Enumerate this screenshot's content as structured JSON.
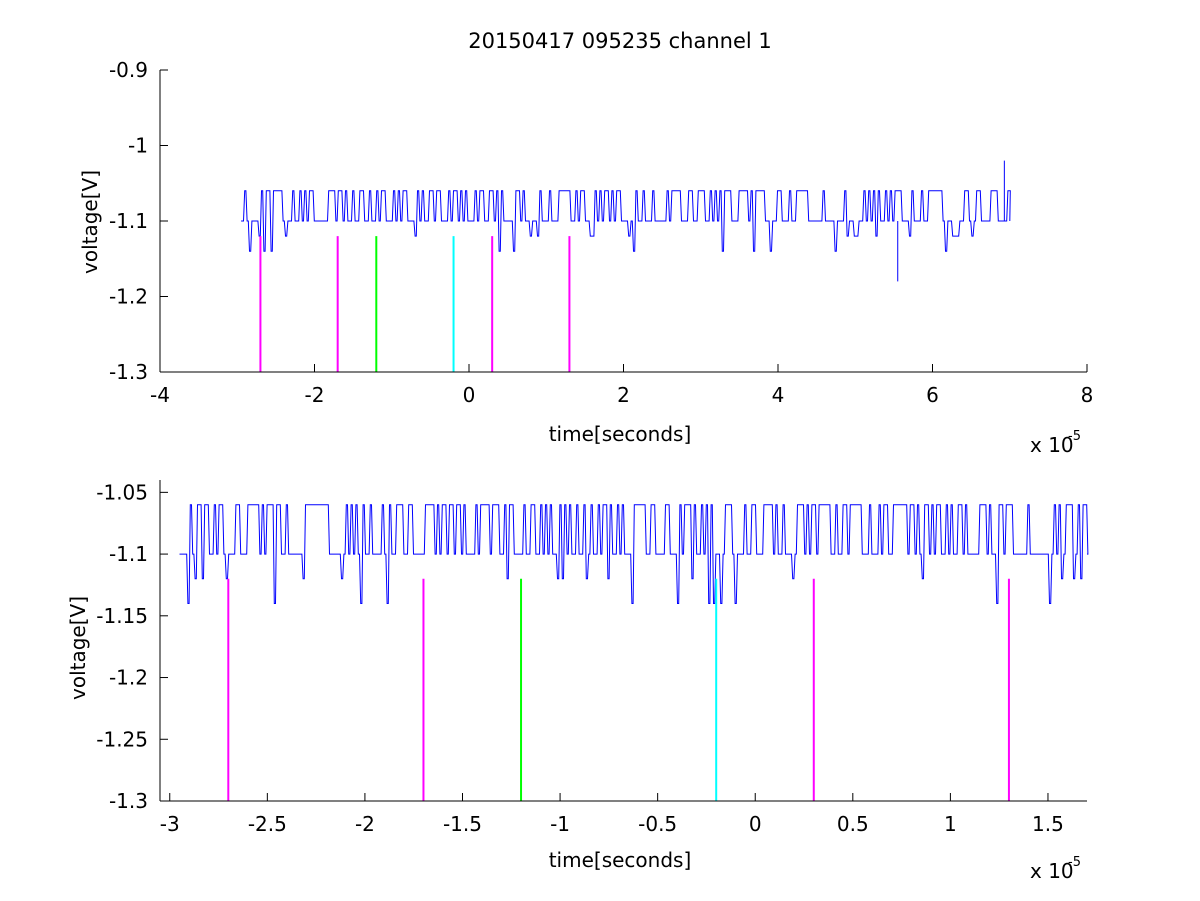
{
  "chart_data": [
    {
      "type": "line",
      "title": "20150417 095235 channel 1",
      "xlabel": "time[seconds]",
      "ylabel": "voltage[V]",
      "x_multiplier": "x 10",
      "x_multiplier_exponent": "-5",
      "xlim": [
        -4,
        8
      ],
      "ylim": [
        -1.3,
        -0.9
      ],
      "xticks": [
        -4,
        -2,
        0,
        2,
        4,
        6,
        8
      ],
      "xtick_labels": [
        "-4",
        "-2",
        "0",
        "2",
        "4",
        "6",
        "8"
      ],
      "yticks": [
        -1.3,
        -1.2,
        -1.1,
        -1.0,
        -0.9
      ],
      "ytick_labels": [
        "-1.3",
        "-1.2",
        "-1.1",
        "-1",
        "-0.9"
      ],
      "grid": false,
      "signal": {
        "color": "#0000ff",
        "x_range": [
          -2.95,
          7.0
        ],
        "baseline": -1.1,
        "levels": [
          -1.06,
          -1.1,
          -1.12,
          -1.14
        ],
        "spikes": [
          {
            "x": 5.55,
            "y": -1.18
          },
          {
            "x": 6.93,
            "y": -1.02
          }
        ]
      },
      "markers": [
        {
          "x": -2.7,
          "y_top": -1.12,
          "y_bottom": -1.3,
          "color": "#ff00ff"
        },
        {
          "x": -1.7,
          "y_top": -1.12,
          "y_bottom": -1.3,
          "color": "#ff00ff"
        },
        {
          "x": -1.2,
          "y_top": -1.12,
          "y_bottom": -1.3,
          "color": "#00ff00"
        },
        {
          "x": -0.2,
          "y_top": -1.12,
          "y_bottom": -1.3,
          "color": "#00ffff"
        },
        {
          "x": 0.3,
          "y_top": -1.12,
          "y_bottom": -1.3,
          "color": "#ff00ff"
        },
        {
          "x": 1.3,
          "y_top": -1.12,
          "y_bottom": -1.3,
          "color": "#ff00ff"
        }
      ]
    },
    {
      "type": "line",
      "title": "",
      "xlabel": "time[seconds]",
      "ylabel": "voltage[V]",
      "x_multiplier": "x 10",
      "x_multiplier_exponent": "-5",
      "xlim": [
        -3.05,
        1.7
      ],
      "ylim": [
        -1.3,
        -1.04
      ],
      "xticks": [
        -3,
        -2.5,
        -2,
        -1.5,
        -1,
        -0.5,
        0,
        0.5,
        1,
        1.5
      ],
      "xtick_labels": [
        "-3",
        "-2.5",
        "-2",
        "-1.5",
        "-1",
        "-0.5",
        "0",
        "0.5",
        "1",
        "1.5"
      ],
      "yticks": [
        -1.3,
        -1.25,
        -1.2,
        -1.15,
        -1.1,
        -1.05
      ],
      "ytick_labels": [
        "-1.3",
        "-1.25",
        "-1.2",
        "-1.15",
        "-1.1",
        "-1.05"
      ],
      "grid": false,
      "signal": {
        "color": "#0000ff",
        "x_range": [
          -2.95,
          1.7
        ],
        "baseline": -1.1,
        "levels": [
          -1.06,
          -1.1,
          -1.12,
          -1.14
        ],
        "spikes": []
      },
      "markers": [
        {
          "x": -2.7,
          "y_top": -1.12,
          "y_bottom": -1.3,
          "color": "#ff00ff"
        },
        {
          "x": -1.7,
          "y_top": -1.12,
          "y_bottom": -1.3,
          "color": "#ff00ff"
        },
        {
          "x": -1.2,
          "y_top": -1.12,
          "y_bottom": -1.3,
          "color": "#00ff00"
        },
        {
          "x": -0.2,
          "y_top": -1.12,
          "y_bottom": -1.3,
          "color": "#00ffff"
        },
        {
          "x": 0.3,
          "y_top": -1.12,
          "y_bottom": -1.3,
          "color": "#ff00ff"
        },
        {
          "x": 1.3,
          "y_top": -1.12,
          "y_bottom": -1.3,
          "color": "#ff00ff"
        }
      ]
    }
  ]
}
